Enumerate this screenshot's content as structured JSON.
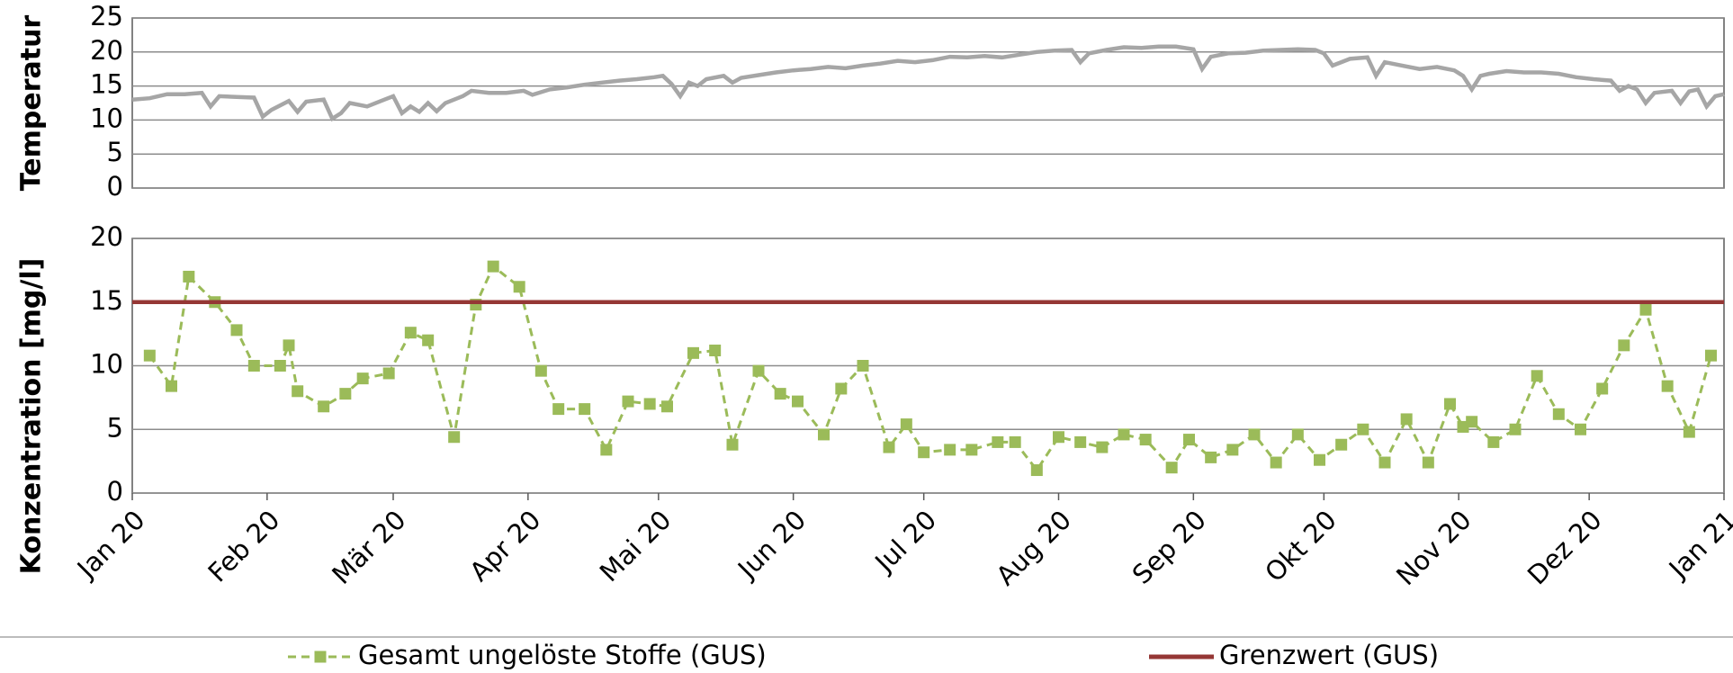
{
  "chart_data": [
    {
      "type": "line",
      "ylabel": "Temperatur",
      "xlim": [
        0,
        366
      ],
      "ylim": [
        0,
        25
      ],
      "yticks": [
        0,
        5,
        10,
        15,
        20,
        25
      ],
      "grid": true,
      "series": [
        {
          "color": "#a6a6a6",
          "x": [
            0,
            4,
            8,
            12,
            16,
            18,
            20,
            24,
            28,
            30,
            32,
            36,
            38,
            40,
            44,
            46,
            48,
            50,
            54,
            58,
            60,
            62,
            64,
            66,
            68,
            70,
            72,
            76,
            78,
            82,
            86,
            90,
            92,
            96,
            100,
            104,
            108,
            112,
            116,
            120,
            122,
            124,
            126,
            128,
            130,
            132,
            136,
            138,
            140,
            144,
            148,
            152,
            156,
            160,
            164,
            168,
            172,
            176,
            180,
            184,
            188,
            192,
            196,
            200,
            204,
            208,
            212,
            216,
            218,
            220,
            224,
            228,
            232,
            236,
            240,
            244,
            246,
            248,
            252,
            256,
            260,
            264,
            268,
            272,
            274,
            276,
            278,
            280,
            284,
            286,
            288,
            292,
            296,
            300,
            304,
            306,
            308,
            310,
            312,
            316,
            320,
            324,
            328,
            332,
            336,
            340,
            342,
            344,
            346,
            348,
            350,
            354,
            356,
            358,
            360,
            362,
            364,
            366
          ],
          "values": [
            13,
            13.2,
            13.8,
            13.8,
            14,
            12,
            13.5,
            13.4,
            13.3,
            10.5,
            11.5,
            12.8,
            11.2,
            12.7,
            13,
            10.2,
            11,
            12.5,
            12,
            13,
            13.5,
            11,
            12,
            11.2,
            12.5,
            11.3,
            12.5,
            13.5,
            14.3,
            14,
            14,
            14.3,
            13.7,
            14.5,
            14.8,
            15.2,
            15.5,
            15.8,
            16,
            16.3,
            16.5,
            15.3,
            13.5,
            15.5,
            15,
            16,
            16.5,
            15.5,
            16.2,
            16.6,
            17,
            17.3,
            17.5,
            17.8,
            17.6,
            18,
            18.3,
            18.7,
            18.5,
            18.8,
            19.3,
            19.2,
            19.4,
            19.2,
            19.6,
            20,
            20.2,
            20.3,
            18.5,
            19.8,
            20.3,
            20.7,
            20.6,
            20.8,
            20.8,
            20.4,
            17.5,
            19.3,
            19.8,
            19.9,
            20.2,
            20.3,
            20.4,
            20.3,
            19.8,
            18,
            18.5,
            19,
            19.2,
            16.5,
            18.5,
            18,
            17.5,
            17.8,
            17.3,
            16.5,
            14.5,
            16.5,
            16.8,
            17.2,
            17,
            17,
            16.8,
            16.3,
            16,
            15.8,
            14.3,
            15,
            14.5,
            12.5,
            14,
            14.3,
            12.5,
            14.2,
            14.5,
            12,
            13.5,
            13.8
          ]
        }
      ]
    },
    {
      "type": "line",
      "ylabel": "Konzentration [mg/l]",
      "xlim": [
        0,
        366
      ],
      "ylim": [
        0,
        20
      ],
      "yticks": [
        0,
        5,
        10,
        15,
        20
      ],
      "grid": true,
      "xticks": [
        {
          "value": 0,
          "label": "Jan 20"
        },
        {
          "value": 31,
          "label": "Feb 20"
        },
        {
          "value": 60,
          "label": "Mär 20"
        },
        {
          "value": 91,
          "label": "Apr 20"
        },
        {
          "value": 121,
          "label": "Mai 20"
        },
        {
          "value": 152,
          "label": "Jun 20"
        },
        {
          "value": 182,
          "label": "Jul 20"
        },
        {
          "value": 213,
          "label": "Aug 20"
        },
        {
          "value": 244,
          "label": "Sep 20"
        },
        {
          "value": 274,
          "label": "Okt 20"
        },
        {
          "value": 305,
          "label": "Nov 20"
        },
        {
          "value": 335,
          "label": "Dez 20"
        },
        {
          "value": 366,
          "label": "Jan 21"
        }
      ],
      "series": [
        {
          "name": "Gesamt ungelöste Stoffe (GUS)",
          "color": "#9bbb59",
          "dash": "dashed",
          "marker": "square",
          "x": [
            4,
            9,
            13,
            19,
            24,
            28,
            34,
            36,
            38,
            44,
            49,
            53,
            59,
            64,
            68,
            74,
            79,
            83,
            89,
            94,
            98,
            104,
            109,
            114,
            119,
            123,
            129,
            134,
            138,
            144,
            149,
            153,
            159,
            163,
            168,
            174,
            178,
            182,
            188,
            193,
            199,
            203,
            208,
            213,
            218,
            223,
            228,
            233,
            239,
            243,
            248,
            253,
            258,
            263,
            268,
            273,
            278,
            283,
            288,
            293,
            298,
            303,
            306,
            308,
            313,
            318,
            323,
            328,
            333,
            338,
            343,
            348,
            353,
            358,
            363
          ],
          "values": [
            10.8,
            8.4,
            17,
            15,
            12.8,
            10,
            10,
            11.6,
            8,
            6.8,
            7.8,
            9,
            9.4,
            12.6,
            12,
            4.4,
            14.8,
            17.8,
            16.2,
            9.6,
            6.6,
            6.6,
            3.4,
            7.2,
            7,
            6.8,
            11,
            11.2,
            3.8,
            9.6,
            7.8,
            7.2,
            4.6,
            8.2,
            10,
            3.6,
            5.4,
            3.2,
            3.4,
            3.4,
            4,
            4,
            1.8,
            4.4,
            4,
            3.6,
            4.6,
            4.2,
            2,
            4.2,
            2.8,
            3.4,
            4.6,
            2.4,
            4.6,
            2.6,
            3.8,
            5,
            2.4,
            5.8,
            2.4,
            7,
            5.2,
            5.6,
            4,
            5,
            9.2,
            6.2,
            5,
            8.2,
            11.6,
            14.4,
            8.4,
            4.8,
            10.8
          ]
        },
        {
          "name": "Grenzwert (GUS)",
          "color": "#953735",
          "x": [
            0,
            366
          ],
          "values": [
            15,
            15
          ]
        }
      ]
    }
  ]
}
